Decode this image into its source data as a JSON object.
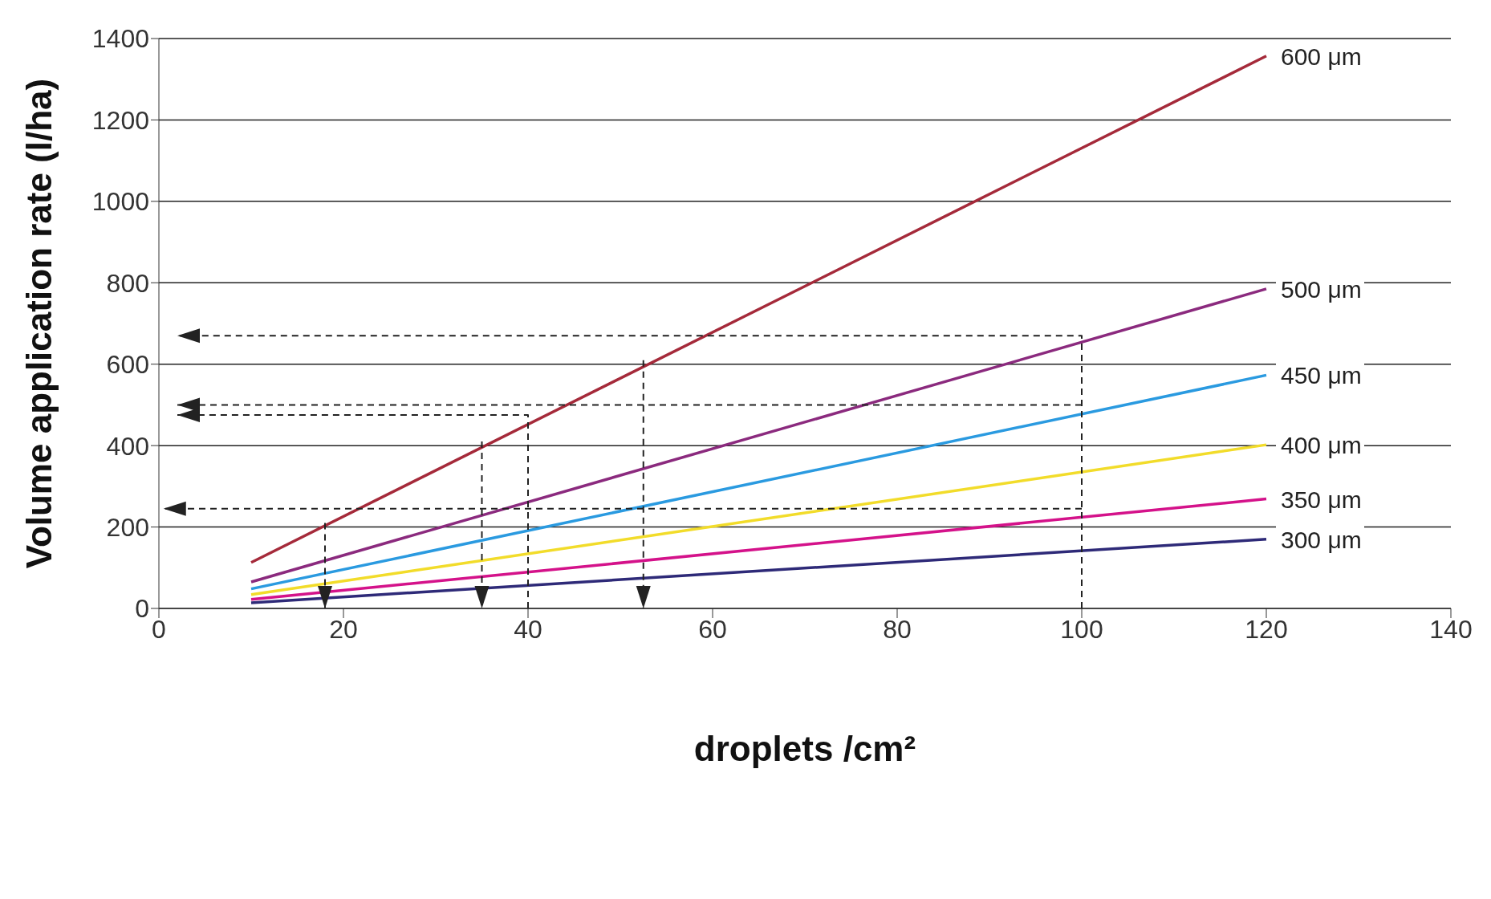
{
  "chart_data": {
    "type": "line",
    "xlabel": "droplets /cm²",
    "ylabel": "Volume application rate (l/ha)",
    "xlim": [
      0,
      140
    ],
    "xticks": [
      0,
      20,
      40,
      60,
      80,
      100,
      120,
      140
    ],
    "ylim": [
      0,
      1400
    ],
    "yticks": [
      0,
      200,
      400,
      600,
      800,
      1000,
      1200,
      1400
    ],
    "grid": "y",
    "legend": false,
    "marker": "none",
    "series": [
      {
        "name": "600 μm",
        "color": "#a52a3a",
        "x": [
          10,
          120
        ],
        "values": [
          113,
          1357
        ]
      },
      {
        "name": "500 μm",
        "color": "#8b2a7e",
        "x": [
          10,
          120
        ],
        "values": [
          65,
          785
        ]
      },
      {
        "name": "450 μm",
        "color": "#2a9ae0",
        "x": [
          10,
          120
        ],
        "values": [
          48,
          573
        ]
      },
      {
        "name": "400 μm",
        "color": "#f2dc2a",
        "x": [
          10,
          120
        ],
        "values": [
          34,
          402
        ]
      },
      {
        "name": "350 μm",
        "color": "#d4128a",
        "x": [
          10,
          120
        ],
        "values": [
          22,
          269
        ]
      },
      {
        "name": "300 μm",
        "color": "#2e2a78",
        "x": [
          10,
          120
        ],
        "values": [
          14,
          170
        ]
      },
      {
        "color": "#222222",
        "line_style": "dashed",
        "x": [
          100,
          100,
          2
        ],
        "values": [
          0,
          670,
          670
        ]
      },
      {
        "color": "#222222",
        "line_style": "dashed",
        "x": [
          100,
          2
        ],
        "values": [
          500,
          500
        ]
      },
      {
        "color": "#222222",
        "line_style": "dashed",
        "x": [
          40,
          40,
          2
        ],
        "values": [
          0,
          475,
          475
        ]
      },
      {
        "color": "#222222",
        "line_style": "dashed",
        "x": [
          100,
          0.5
        ],
        "values": [
          245,
          245
        ]
      },
      {
        "color": "#222222",
        "line_style": "dashed",
        "x": [
          18,
          18
        ],
        "values": [
          210,
          0
        ]
      },
      {
        "color": "#222222",
        "line_style": "dashed",
        "x": [
          35,
          35
        ],
        "values": [
          410,
          0
        ]
      },
      {
        "color": "#222222",
        "line_style": "dashed",
        "x": [
          52.5,
          52.5
        ],
        "values": [
          610,
          0
        ]
      }
    ]
  }
}
